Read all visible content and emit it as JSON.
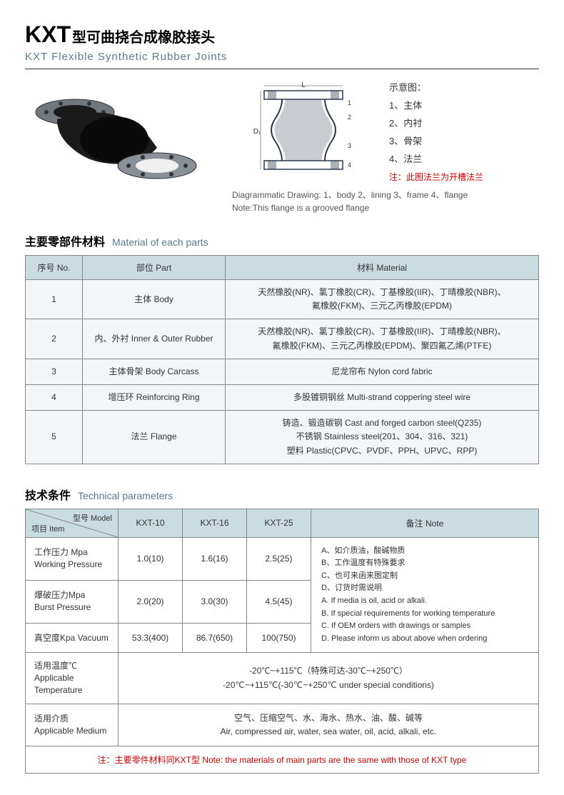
{
  "header": {
    "title_main": "KXT",
    "title_sub_cn": "型可曲挠合成橡胶接头",
    "title_en": "KXT Flexible Synthetic Rubber Joints"
  },
  "diagram": {
    "legend_title": "示意图：",
    "legend_items": [
      "1、主体",
      "2、内衬",
      "3、骨架",
      "4、法兰"
    ],
    "legend_note": "注：此图法兰为开槽法兰",
    "caption_line1": "Diagrammatic Drawing: 1、body 2、lining 3、frame 4、flange",
    "caption_line2": "Note:This flange is a grooved flange",
    "colors": {
      "flange": "#4a5560",
      "body": "#1a1a1a",
      "schematic_stroke": "#2a3a4a"
    }
  },
  "materials": {
    "section_title_cn": "主要零部件材料",
    "section_title_en": "Material of each parts",
    "headers": [
      "序号 No.",
      "部位 Part",
      "材料 Material"
    ],
    "rows": [
      {
        "no": "1",
        "part": "主体 Body",
        "material": "天然橡胶(NR)、氯丁橡胶(CR)、丁基橡胶(IIR)、丁晴橡胶(NBR)、\n氟橡胶(FKM)、三元乙丙橡胶(EPDM)"
      },
      {
        "no": "2",
        "part": "内、外衬 Inner & Outer Rubber",
        "material": "天然橡胶(NR)、氯丁橡胶(CR)、丁基橡胶(IIR)、丁晴橡胶(NBR)、\n氟橡胶(FKM)、三元乙丙橡胶(EPDM)、聚四氟乙烯(PTFE)"
      },
      {
        "no": "3",
        "part": "主体骨架 Body Carcass",
        "material": "尼龙帘布 Nylon cord fabric"
      },
      {
        "no": "4",
        "part": "增压环 Reinforcing Ring",
        "material": "多股镀铜钢丝 Multi-strand coppering steel wire"
      },
      {
        "no": "5",
        "part": "法兰 Flange",
        "material": "铸造、锻造碳钢 Cast and forged carbon steel(Q235)\n不锈钢 Stainless steel(201、304、316、321)\n塑料 Plastic(CPVC、PVDF、PPH、UPVC、RPP)"
      }
    ]
  },
  "technical": {
    "section_title_cn": "技术条件",
    "section_title_en": "Technical parameters",
    "header_item": "项目 Item",
    "header_model": "型号 Model",
    "models": [
      "KXT-10",
      "KXT-16",
      "KXT-25"
    ],
    "header_note": "备注 Note",
    "rows": [
      {
        "item_cn": "工作压力 Mpa",
        "item_en": "Working Pressure",
        "v1": "1.0(10)",
        "v2": "1.6(16)",
        "v3": "2.5(25)"
      },
      {
        "item_cn": "爆破压力Mpa",
        "item_en": "Burst Pressure",
        "v1": "2.0(20)",
        "v2": "3.0(30)",
        "v3": "4.5(45)"
      },
      {
        "item_cn": "真空度Kpa   Vacuum",
        "item_en": "",
        "v1": "53.3(400)",
        "v2": "86.7(650)",
        "v3": "100(750)"
      }
    ],
    "notes": "A、如介质油，酸碱物质\nB、工作温度有特殊要求\nC、也可来函来图定制\nD、订货时需说明\nA. If media is oil, acid or alkali.\nB. If special requirements for working temperature\nC. If OEM orders with drawings or samples\nD. Please inform us about above when ordering",
    "temp_label_cn": "适用温度℃",
    "temp_label_en": "Applicable Temperature",
    "temp_value": "-20℃~+115℃（特殊可达-30℃~+250℃）\n-20℃~+115℃(-30℃~+250℃ under special conditions)",
    "medium_label_cn": "适用介质",
    "medium_label_en": "Applicable Medium",
    "medium_value": "空气、压缩空气、水、海水、热水、油、酸、碱等\nAir, compressed air, water, sea water, oil, acid, alkali, etc.",
    "footer_note": "注：主要零件材料同KXT型 Note: the materials of main parts are the same with those of KXT type"
  },
  "styling": {
    "header_bg": "#c8dce2",
    "cell_bg_alt": "#f2f6f8",
    "border_color": "#888888",
    "red_color": "#cc0000",
    "en_color": "#5a7a8a"
  }
}
